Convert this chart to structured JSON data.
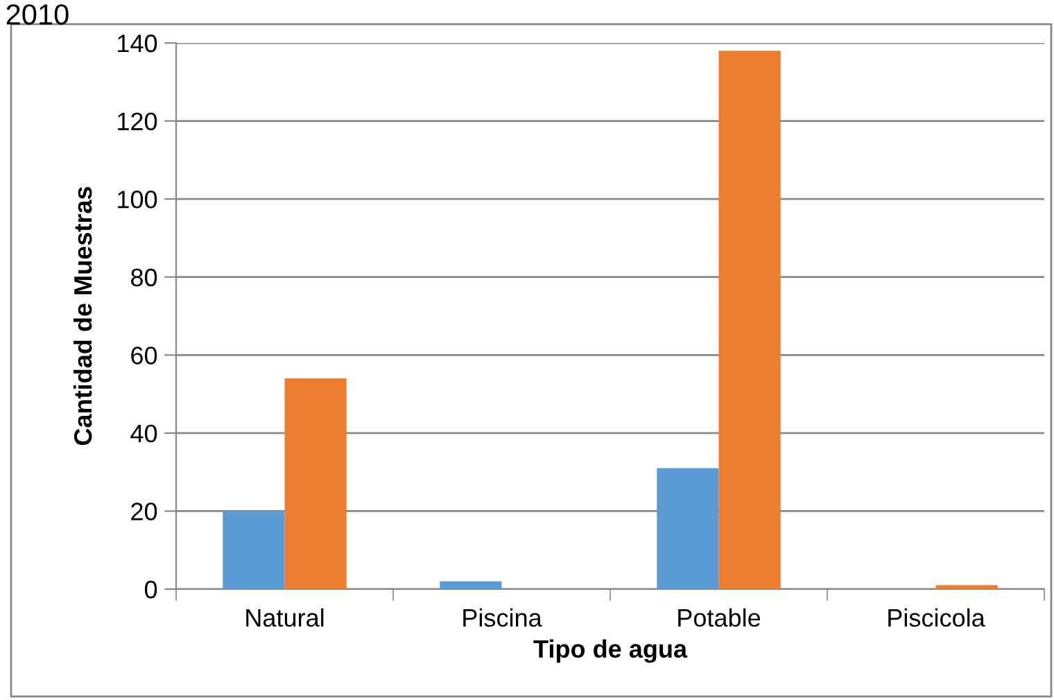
{
  "chart_data": {
    "type": "bar",
    "title": "2010",
    "xlabel": "Tipo de agua",
    "ylabel": "Cantidad de Muestras",
    "categories": [
      "Natural",
      "Piscina",
      "Potable",
      "Piscicola"
    ],
    "series": [
      {
        "color": "#5b9bd5",
        "values": [
          20,
          2,
          31,
          0
        ]
      },
      {
        "color": "#ed7d31",
        "values": [
          54,
          0,
          138,
          1
        ]
      }
    ],
    "ylim": [
      0,
      140
    ],
    "yticks": [
      0,
      20,
      40,
      60,
      80,
      100,
      120,
      140
    ],
    "grid": "y",
    "legend": false
  }
}
